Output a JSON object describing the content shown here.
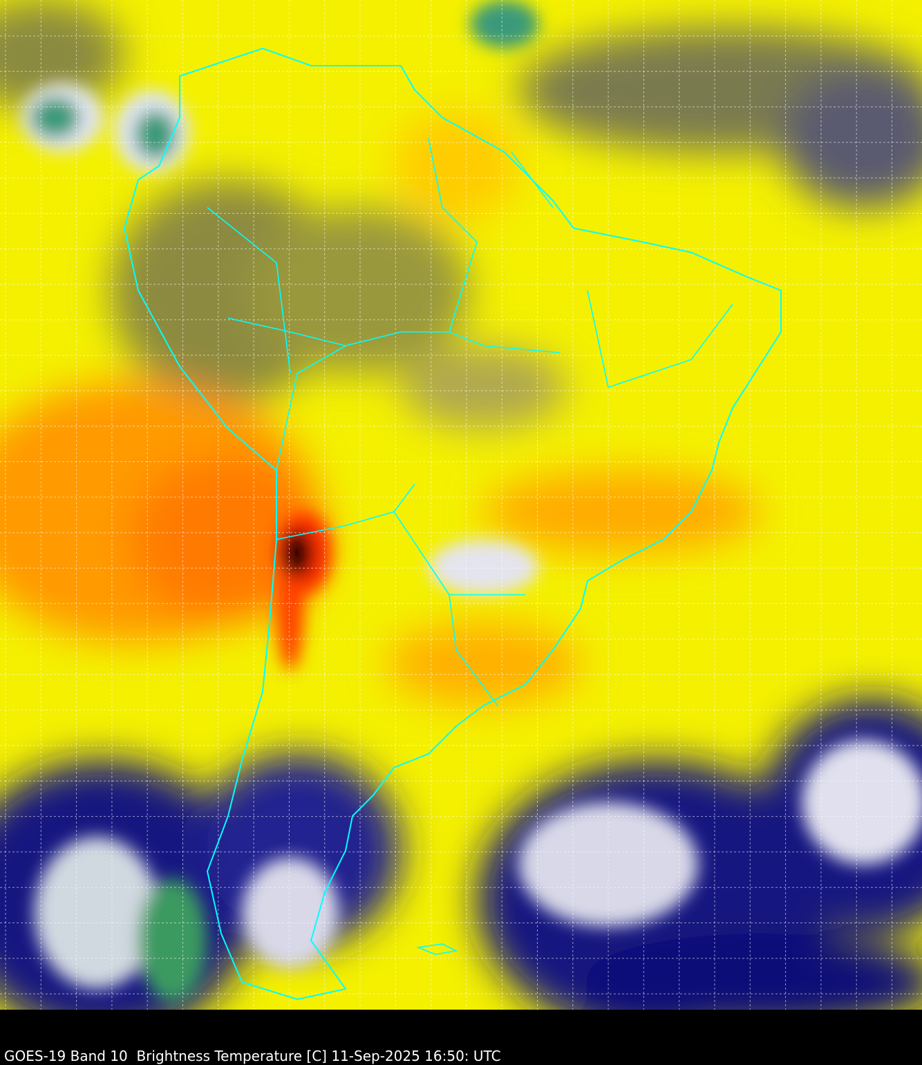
{
  "caption": "GOES-19 Band 10  Brightness Temperature [C] 11-Sep-2025 16:50: UTC",
  "colors": {
    "warm_yellow": "#ffff00",
    "orange": "#ff9900",
    "red": "#ff3300",
    "olive": "#8a8a3a",
    "navy": "#101080",
    "cloud_white": "#e8e8f0",
    "cold_green": "#3a9a70",
    "boundary_lines": "#00ffff",
    "grid_lines": "#ffffff",
    "background": "#000000"
  }
}
